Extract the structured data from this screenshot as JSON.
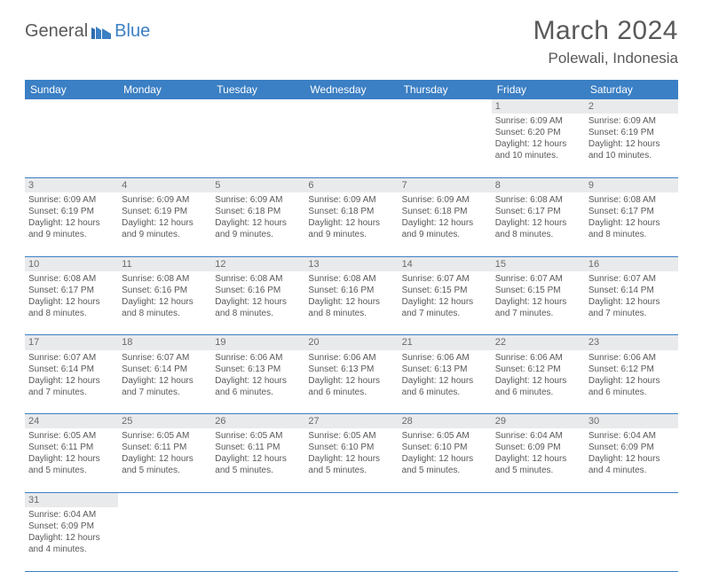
{
  "brand": {
    "part1": "General",
    "part2": "Blue"
  },
  "title": "March 2024",
  "location": "Polewali, Indonesia",
  "colors": {
    "header_bg": "#3b7fc4",
    "daynum_bg": "#e9eaec",
    "text": "#595959",
    "accent": "#3b7fc4"
  },
  "daysOfWeek": [
    "Sunday",
    "Monday",
    "Tuesday",
    "Wednesday",
    "Thursday",
    "Friday",
    "Saturday"
  ],
  "weeks": [
    [
      null,
      null,
      null,
      null,
      null,
      {
        "n": "1",
        "sr": "Sunrise: 6:09 AM",
        "ss": "Sunset: 6:20 PM",
        "d1": "Daylight: 12 hours",
        "d2": "and 10 minutes."
      },
      {
        "n": "2",
        "sr": "Sunrise: 6:09 AM",
        "ss": "Sunset: 6:19 PM",
        "d1": "Daylight: 12 hours",
        "d2": "and 10 minutes."
      }
    ],
    [
      {
        "n": "3",
        "sr": "Sunrise: 6:09 AM",
        "ss": "Sunset: 6:19 PM",
        "d1": "Daylight: 12 hours",
        "d2": "and 9 minutes."
      },
      {
        "n": "4",
        "sr": "Sunrise: 6:09 AM",
        "ss": "Sunset: 6:19 PM",
        "d1": "Daylight: 12 hours",
        "d2": "and 9 minutes."
      },
      {
        "n": "5",
        "sr": "Sunrise: 6:09 AM",
        "ss": "Sunset: 6:18 PM",
        "d1": "Daylight: 12 hours",
        "d2": "and 9 minutes."
      },
      {
        "n": "6",
        "sr": "Sunrise: 6:09 AM",
        "ss": "Sunset: 6:18 PM",
        "d1": "Daylight: 12 hours",
        "d2": "and 9 minutes."
      },
      {
        "n": "7",
        "sr": "Sunrise: 6:09 AM",
        "ss": "Sunset: 6:18 PM",
        "d1": "Daylight: 12 hours",
        "d2": "and 9 minutes."
      },
      {
        "n": "8",
        "sr": "Sunrise: 6:08 AM",
        "ss": "Sunset: 6:17 PM",
        "d1": "Daylight: 12 hours",
        "d2": "and 8 minutes."
      },
      {
        "n": "9",
        "sr": "Sunrise: 6:08 AM",
        "ss": "Sunset: 6:17 PM",
        "d1": "Daylight: 12 hours",
        "d2": "and 8 minutes."
      }
    ],
    [
      {
        "n": "10",
        "sr": "Sunrise: 6:08 AM",
        "ss": "Sunset: 6:17 PM",
        "d1": "Daylight: 12 hours",
        "d2": "and 8 minutes."
      },
      {
        "n": "11",
        "sr": "Sunrise: 6:08 AM",
        "ss": "Sunset: 6:16 PM",
        "d1": "Daylight: 12 hours",
        "d2": "and 8 minutes."
      },
      {
        "n": "12",
        "sr": "Sunrise: 6:08 AM",
        "ss": "Sunset: 6:16 PM",
        "d1": "Daylight: 12 hours",
        "d2": "and 8 minutes."
      },
      {
        "n": "13",
        "sr": "Sunrise: 6:08 AM",
        "ss": "Sunset: 6:16 PM",
        "d1": "Daylight: 12 hours",
        "d2": "and 8 minutes."
      },
      {
        "n": "14",
        "sr": "Sunrise: 6:07 AM",
        "ss": "Sunset: 6:15 PM",
        "d1": "Daylight: 12 hours",
        "d2": "and 7 minutes."
      },
      {
        "n": "15",
        "sr": "Sunrise: 6:07 AM",
        "ss": "Sunset: 6:15 PM",
        "d1": "Daylight: 12 hours",
        "d2": "and 7 minutes."
      },
      {
        "n": "16",
        "sr": "Sunrise: 6:07 AM",
        "ss": "Sunset: 6:14 PM",
        "d1": "Daylight: 12 hours",
        "d2": "and 7 minutes."
      }
    ],
    [
      {
        "n": "17",
        "sr": "Sunrise: 6:07 AM",
        "ss": "Sunset: 6:14 PM",
        "d1": "Daylight: 12 hours",
        "d2": "and 7 minutes."
      },
      {
        "n": "18",
        "sr": "Sunrise: 6:07 AM",
        "ss": "Sunset: 6:14 PM",
        "d1": "Daylight: 12 hours",
        "d2": "and 7 minutes."
      },
      {
        "n": "19",
        "sr": "Sunrise: 6:06 AM",
        "ss": "Sunset: 6:13 PM",
        "d1": "Daylight: 12 hours",
        "d2": "and 6 minutes."
      },
      {
        "n": "20",
        "sr": "Sunrise: 6:06 AM",
        "ss": "Sunset: 6:13 PM",
        "d1": "Daylight: 12 hours",
        "d2": "and 6 minutes."
      },
      {
        "n": "21",
        "sr": "Sunrise: 6:06 AM",
        "ss": "Sunset: 6:13 PM",
        "d1": "Daylight: 12 hours",
        "d2": "and 6 minutes."
      },
      {
        "n": "22",
        "sr": "Sunrise: 6:06 AM",
        "ss": "Sunset: 6:12 PM",
        "d1": "Daylight: 12 hours",
        "d2": "and 6 minutes."
      },
      {
        "n": "23",
        "sr": "Sunrise: 6:06 AM",
        "ss": "Sunset: 6:12 PM",
        "d1": "Daylight: 12 hours",
        "d2": "and 6 minutes."
      }
    ],
    [
      {
        "n": "24",
        "sr": "Sunrise: 6:05 AM",
        "ss": "Sunset: 6:11 PM",
        "d1": "Daylight: 12 hours",
        "d2": "and 5 minutes."
      },
      {
        "n": "25",
        "sr": "Sunrise: 6:05 AM",
        "ss": "Sunset: 6:11 PM",
        "d1": "Daylight: 12 hours",
        "d2": "and 5 minutes."
      },
      {
        "n": "26",
        "sr": "Sunrise: 6:05 AM",
        "ss": "Sunset: 6:11 PM",
        "d1": "Daylight: 12 hours",
        "d2": "and 5 minutes."
      },
      {
        "n": "27",
        "sr": "Sunrise: 6:05 AM",
        "ss": "Sunset: 6:10 PM",
        "d1": "Daylight: 12 hours",
        "d2": "and 5 minutes."
      },
      {
        "n": "28",
        "sr": "Sunrise: 6:05 AM",
        "ss": "Sunset: 6:10 PM",
        "d1": "Daylight: 12 hours",
        "d2": "and 5 minutes."
      },
      {
        "n": "29",
        "sr": "Sunrise: 6:04 AM",
        "ss": "Sunset: 6:09 PM",
        "d1": "Daylight: 12 hours",
        "d2": "and 5 minutes."
      },
      {
        "n": "30",
        "sr": "Sunrise: 6:04 AM",
        "ss": "Sunset: 6:09 PM",
        "d1": "Daylight: 12 hours",
        "d2": "and 4 minutes."
      }
    ],
    [
      {
        "n": "31",
        "sr": "Sunrise: 6:04 AM",
        "ss": "Sunset: 6:09 PM",
        "d1": "Daylight: 12 hours",
        "d2": "and 4 minutes."
      },
      null,
      null,
      null,
      null,
      null,
      null
    ]
  ]
}
